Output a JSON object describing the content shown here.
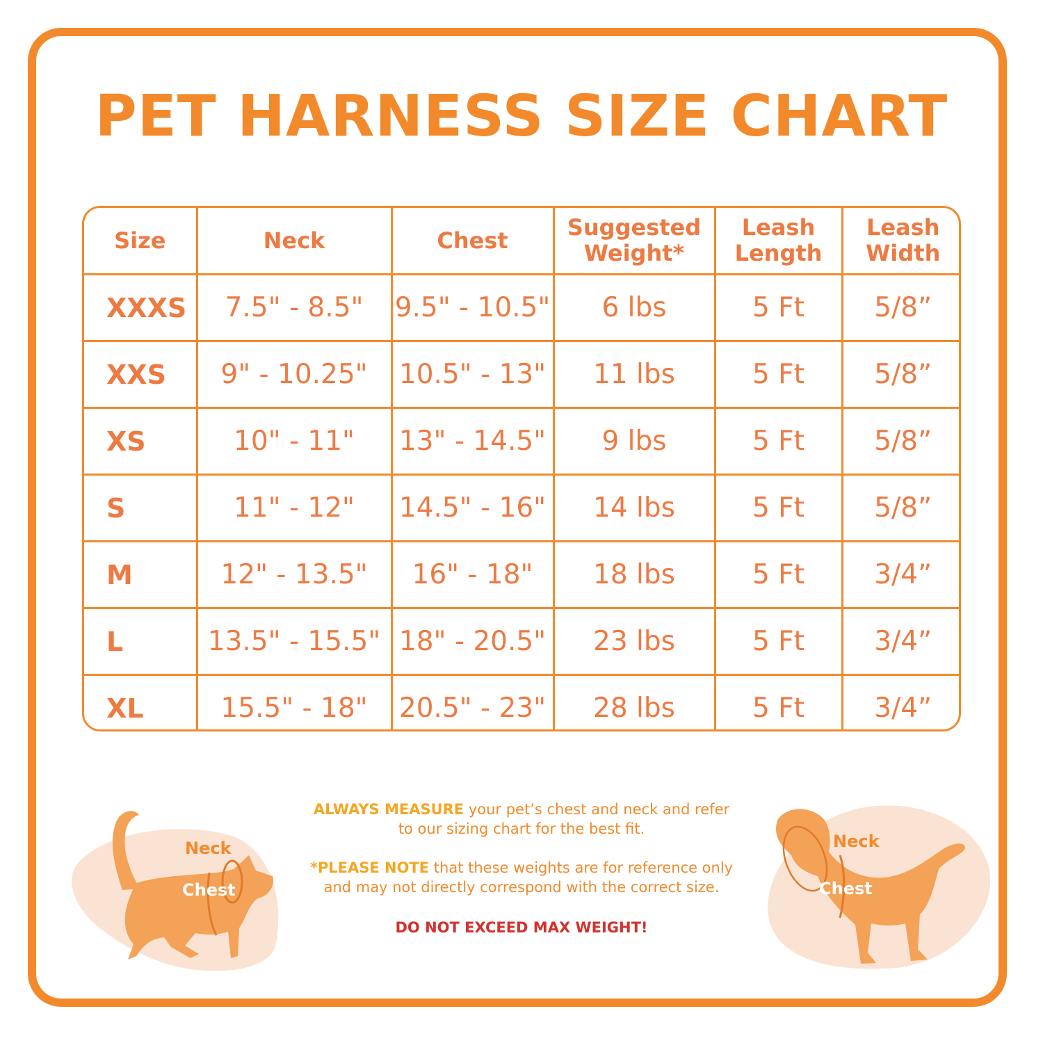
{
  "title": "PET HARNESS SIZE CHART",
  "table": {
    "headers": [
      [
        "Size"
      ],
      [
        "Neck"
      ],
      [
        "Chest"
      ],
      [
        "Suggested",
        "Weight*"
      ],
      [
        "Leash",
        "Length"
      ],
      [
        "Leash",
        "Width"
      ]
    ],
    "rows": [
      [
        "XXXS",
        "7.5\" - 8.5\"",
        "9.5\" - 10.5\"",
        "6 lbs",
        "5 Ft",
        "5/8”"
      ],
      [
        "XXS",
        "9\" - 10.25\"",
        "10.5\" - 13\"",
        "11 lbs",
        "5 Ft",
        "5/8”"
      ],
      [
        "XS",
        "10\" - 11\"",
        "13\" - 14.5\"",
        "9 lbs",
        "5 Ft",
        "5/8”"
      ],
      [
        "S",
        "11\" - 12\"",
        "14.5\" - 16\"",
        "14 lbs",
        "5 Ft",
        "5/8”"
      ],
      [
        "M",
        "12\" - 13.5\"",
        "16\" - 18\"",
        "18 lbs",
        "5 Ft",
        "3/4”"
      ],
      [
        "L",
        "13.5\" - 15.5\"",
        "18\" - 20.5\"",
        "23 lbs",
        "5 Ft",
        "3/4”"
      ],
      [
        "XL",
        "15.5\" - 18\"",
        "20.5\" - 23\"",
        "28 lbs",
        "5 Ft",
        "3/4”"
      ]
    ]
  },
  "cat": {
    "neck_label": "Neck",
    "chest_label": "Chest"
  },
  "dog": {
    "neck_label": "Neck",
    "chest_label": "Chest"
  },
  "notes": {
    "measure_bold": "ALWAYS MEASURE",
    "measure_rest": " your pet’s chest and neck and refer",
    "measure_line2": "to our sizing chart for the best fit.",
    "note_bold": "*PLEASE NOTE",
    "note_rest": " that these weights are for reference only",
    "note_line2": "and may not directly correspond with the correct size.",
    "warning": "DO NOT EXCEED MAX WEIGHT!"
  },
  "colors": {
    "accent": "#f28a2c",
    "text_orange": "#ee7a42",
    "warning_red": "#d3312d",
    "blob": "#fbe3d3",
    "pet": "#f4a257"
  }
}
